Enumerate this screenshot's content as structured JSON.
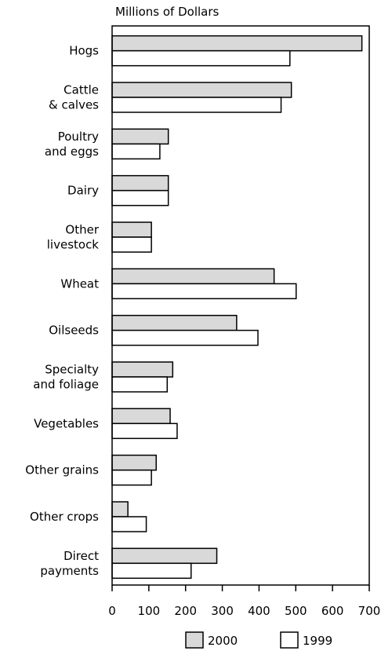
{
  "chart_data": {
    "type": "hbar",
    "title": "Millions of Dollars",
    "categories": [
      "Hogs",
      "Cattle\n& calves",
      "Poultry\nand eggs",
      "Dairy",
      "Other\nlivestock",
      "Wheat",
      "Oilseeds",
      "Specialty\nand foliage",
      "Vegetables",
      "Other grains",
      "Other crops",
      "Direct\npayments"
    ],
    "series": [
      {
        "name": "2000",
        "color": "#d9d9d9",
        "values": [
          680,
          488,
          153,
          153,
          107,
          441,
          339,
          165,
          158,
          120,
          43,
          285
        ]
      },
      {
        "name": "1999",
        "color": "#ffffff",
        "values": [
          484,
          460,
          130,
          153,
          107,
          501,
          397,
          150,
          177,
          107,
          93,
          215
        ]
      }
    ],
    "xlim": [
      0,
      700
    ],
    "xticks": [
      0,
      100,
      200,
      300,
      400,
      500,
      600,
      700
    ]
  }
}
